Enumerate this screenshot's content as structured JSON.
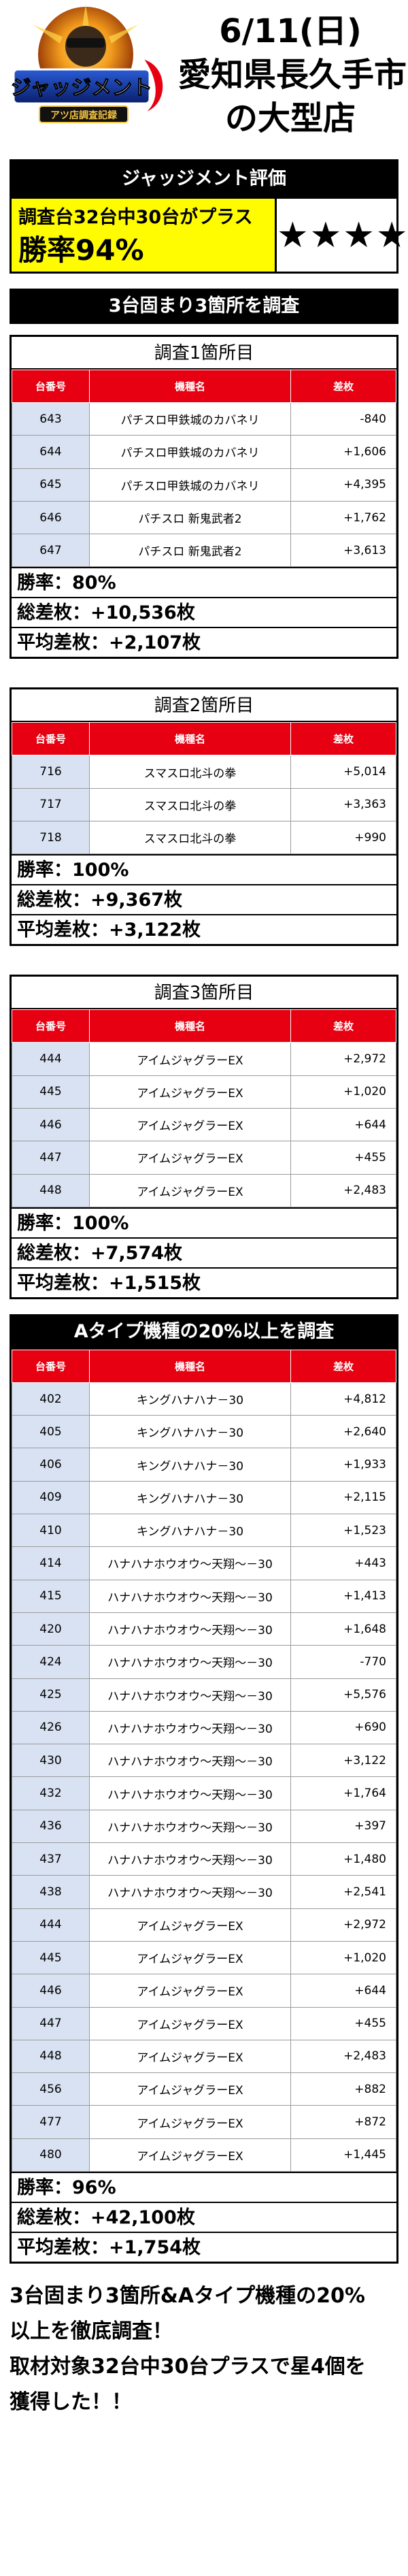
{
  "header": {
    "logo_text": "ジャッジメント",
    "logo_sub": "アツ店調査記録",
    "date": "6/11(日)",
    "location": "愛知県長久手市",
    "store_type": "の大型店"
  },
  "evaluation": {
    "title": "ジャッジメント評価",
    "line1": "調査台32台中30台がプラス",
    "line2": "勝率94%",
    "stars": "★★★★"
  },
  "topic1": "3台固まり3箇所を調査",
  "columns": [
    "台番号",
    "機種名",
    "差枚"
  ],
  "surveys": [
    {
      "title": "調査1箇所目",
      "rows": [
        {
          "num": "643",
          "model": "パチスロ甲鉄城のカバネリ",
          "diff": "-840"
        },
        {
          "num": "644",
          "model": "パチスロ甲鉄城のカバネリ",
          "diff": "+1,606"
        },
        {
          "num": "645",
          "model": "パチスロ甲鉄城のカバネリ",
          "diff": "+4,395"
        },
        {
          "num": "646",
          "model": "パチスロ 新鬼武者2",
          "diff": "+1,762"
        },
        {
          "num": "647",
          "model": "パチスロ 新鬼武者2",
          "diff": "+3,613"
        }
      ],
      "win_rate": "勝率：80%",
      "total": "総差枚：+10,536枚",
      "average": "平均差枚：+2,107枚"
    },
    {
      "title": "調査2箇所目",
      "rows": [
        {
          "num": "716",
          "model": "スマスロ北斗の拳",
          "diff": "+5,014"
        },
        {
          "num": "717",
          "model": "スマスロ北斗の拳",
          "diff": "+3,363"
        },
        {
          "num": "718",
          "model": "スマスロ北斗の拳",
          "diff": "+990"
        }
      ],
      "win_rate": "勝率：100%",
      "total": "総差枚：+9,367枚",
      "average": "平均差枚：+3,122枚"
    },
    {
      "title": "調査3箇所目",
      "rows": [
        {
          "num": "444",
          "model": "アイムジャグラーEX",
          "diff": "+2,972"
        },
        {
          "num": "445",
          "model": "アイムジャグラーEX",
          "diff": "+1,020"
        },
        {
          "num": "446",
          "model": "アイムジャグラーEX",
          "diff": "+644"
        },
        {
          "num": "447",
          "model": "アイムジャグラーEX",
          "diff": "+455"
        },
        {
          "num": "448",
          "model": "アイムジャグラーEX",
          "diff": "+2,483"
        }
      ],
      "win_rate": "勝率：100%",
      "total": "総差枚：+7,574枚",
      "average": "平均差枚：+1,515枚"
    }
  ],
  "topic2": "Aタイプ機種の20%以上を調査",
  "atype": {
    "rows": [
      {
        "num": "402",
        "model": "キングハナハナ－30",
        "diff": "+4,812"
      },
      {
        "num": "405",
        "model": "キングハナハナ－30",
        "diff": "+2,640"
      },
      {
        "num": "406",
        "model": "キングハナハナ－30",
        "diff": "+1,933"
      },
      {
        "num": "409",
        "model": "キングハナハナ－30",
        "diff": "+2,115"
      },
      {
        "num": "410",
        "model": "キングハナハナ－30",
        "diff": "+1,523"
      },
      {
        "num": "414",
        "model": "ハナハナホウオウ～天翔～－30",
        "diff": "+443"
      },
      {
        "num": "415",
        "model": "ハナハナホウオウ～天翔～－30",
        "diff": "+1,413"
      },
      {
        "num": "420",
        "model": "ハナハナホウオウ～天翔～－30",
        "diff": "+1,648"
      },
      {
        "num": "424",
        "model": "ハナハナホウオウ～天翔～－30",
        "diff": "-770"
      },
      {
        "num": "425",
        "model": "ハナハナホウオウ～天翔～－30",
        "diff": "+5,576"
      },
      {
        "num": "426",
        "model": "ハナハナホウオウ～天翔～－30",
        "diff": "+690"
      },
      {
        "num": "430",
        "model": "ハナハナホウオウ～天翔～－30",
        "diff": "+3,122"
      },
      {
        "num": "432",
        "model": "ハナハナホウオウ～天翔～－30",
        "diff": "+1,764"
      },
      {
        "num": "436",
        "model": "ハナハナホウオウ～天翔～－30",
        "diff": "+397"
      },
      {
        "num": "437",
        "model": "ハナハナホウオウ～天翔～－30",
        "diff": "+1,480"
      },
      {
        "num": "438",
        "model": "ハナハナホウオウ～天翔～－30",
        "diff": "+2,541"
      },
      {
        "num": "444",
        "model": "アイムジャグラーEX",
        "diff": "+2,972"
      },
      {
        "num": "445",
        "model": "アイムジャグラーEX",
        "diff": "+1,020"
      },
      {
        "num": "446",
        "model": "アイムジャグラーEX",
        "diff": "+644"
      },
      {
        "num": "447",
        "model": "アイムジャグラーEX",
        "diff": "+455"
      },
      {
        "num": "448",
        "model": "アイムジャグラーEX",
        "diff": "+2,483"
      },
      {
        "num": "456",
        "model": "アイムジャグラーEX",
        "diff": "+882"
      },
      {
        "num": "477",
        "model": "アイムジャグラーEX",
        "diff": "+872"
      },
      {
        "num": "480",
        "model": "アイムジャグラーEX",
        "diff": "+1,445"
      }
    ],
    "win_rate": "勝率：96%",
    "total": "総差枚：+42,100枚",
    "average": "平均差枚：+1,754枚"
  },
  "footer": {
    "line1": "3台固まり3箇所&Aタイプ機種の20%",
    "line2": "以上を徹底調査！",
    "line3": "取材対象32台中30台プラスで星4個を",
    "line4": "獲得した！！"
  },
  "colors": {
    "header_red": "#e60012",
    "number_cell": "#d9e2f2",
    "highlight_yellow": "#fffb00",
    "bar_black": "#000000"
  }
}
